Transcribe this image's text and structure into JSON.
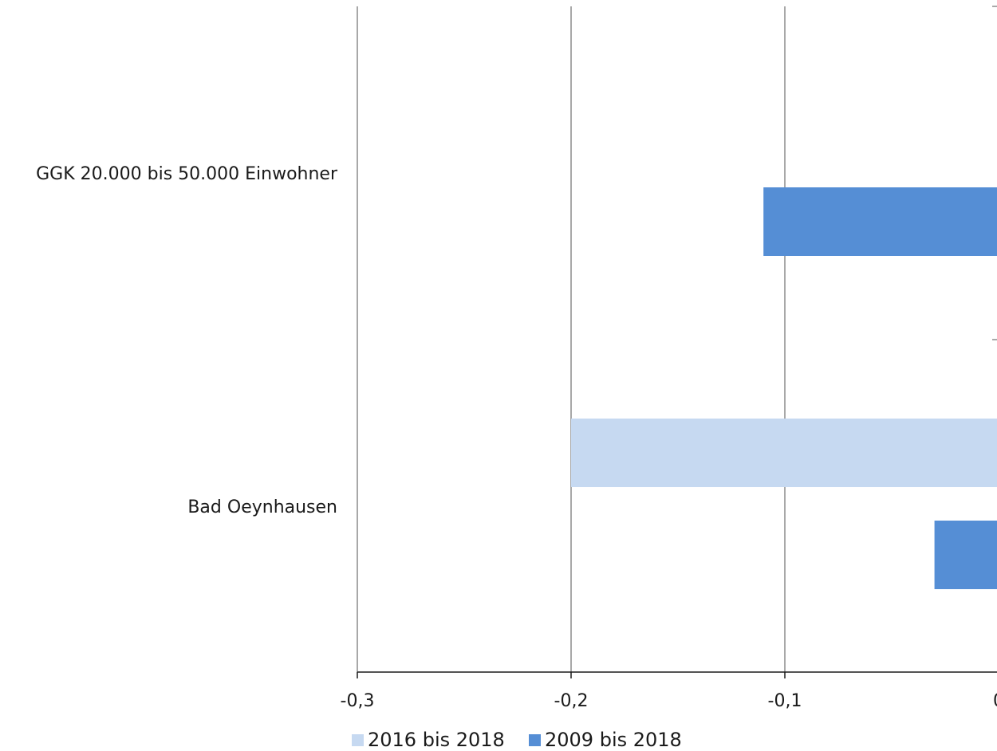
{
  "chart_data": {
    "type": "bar",
    "orientation": "horizontal",
    "categories": [
      "GGK 20.000 bis 50.000 Einwohner",
      "Bad Oeynhausen"
    ],
    "series": [
      {
        "name": "2016 bis 2018",
        "color": "#c6d9f1",
        "values": [
          0,
          -0.2
        ]
      },
      {
        "name": "2009 bis 2018",
        "color": "#558ed5",
        "values": [
          -0.11,
          -0.03
        ]
      }
    ],
    "xlim": [
      -0.3,
      0
    ],
    "xticks": [
      -0.3,
      -0.2,
      -0.1,
      0
    ],
    "xtick_labels": [
      "-0,3",
      "-0,2",
      "-0,1",
      "0"
    ],
    "grid": true,
    "legend_position": "bottom",
    "title": "",
    "xlabel": "",
    "ylabel": ""
  }
}
